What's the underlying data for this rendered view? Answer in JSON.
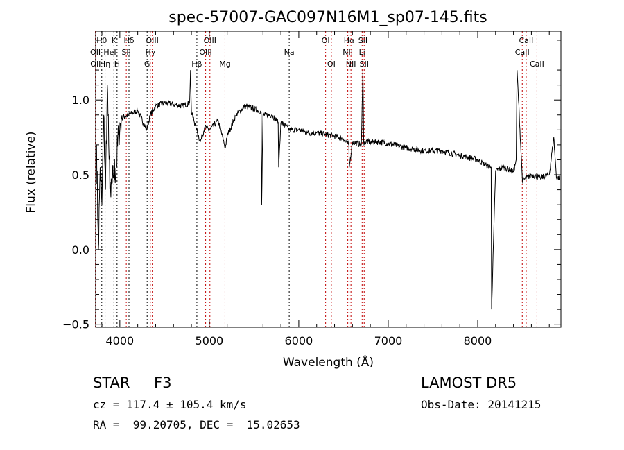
{
  "chart_data": {
    "type": "line",
    "title": "spec-57007-GAC097N16M1_sp07-145.fits",
    "xlabel": "Wavelength (Å)",
    "ylabel": "Flux (relative)",
    "xlim": [
      3730,
      8930
    ],
    "ylim": [
      -0.52,
      1.46
    ],
    "xticks": [
      4000,
      5000,
      6000,
      7000,
      8000
    ],
    "yticks": [
      -0.5,
      0.0,
      0.5,
      1.0
    ],
    "ytick_labels": [
      "−0.5",
      "0.0",
      "0.5",
      "1.0"
    ],
    "series": [
      {
        "name": "spectrum",
        "x": [
          3740,
          3760,
          3780,
          3800,
          3820,
          3840,
          3860,
          3880,
          3900,
          3930,
          3960,
          3990,
          4020,
          4100,
          4200,
          4300,
          4340,
          4400,
          4500,
          4600,
          4700,
          4780,
          4790,
          4800,
          4860,
          4900,
          4950,
          5000,
          5100,
          5180,
          5200,
          5300,
          5400,
          5500,
          5580,
          5585,
          5600,
          5700,
          5770,
          5775,
          5800,
          5900,
          6000,
          6100,
          6200,
          6300,
          6400,
          6500,
          6560,
          6565,
          6600,
          6700,
          6717,
          6725,
          6800,
          6900,
          7000,
          7200,
          7400,
          7600,
          7800,
          8000,
          8100,
          8150,
          8155,
          8200,
          8300,
          8400,
          8430,
          8440,
          8500,
          8600,
          8700,
          8800,
          8850,
          8880,
          8920
        ],
        "y": [
          0.7,
          0.0,
          0.55,
          0.3,
          0.9,
          0.4,
          1.1,
          0.6,
          0.35,
          0.5,
          0.55,
          0.8,
          0.88,
          0.9,
          0.93,
          0.8,
          0.9,
          0.96,
          0.98,
          0.97,
          0.96,
          0.98,
          1.2,
          0.92,
          0.8,
          0.72,
          0.82,
          0.8,
          0.86,
          0.68,
          0.76,
          0.9,
          0.96,
          0.94,
          0.92,
          0.3,
          0.9,
          0.9,
          0.85,
          0.55,
          0.85,
          0.8,
          0.8,
          0.78,
          0.78,
          0.77,
          0.76,
          0.74,
          0.7,
          0.55,
          0.72,
          0.7,
          1.2,
          0.72,
          0.72,
          0.72,
          0.71,
          0.68,
          0.66,
          0.66,
          0.63,
          0.6,
          0.56,
          0.55,
          -0.4,
          0.53,
          0.55,
          0.52,
          0.6,
          1.2,
          0.46,
          0.5,
          0.48,
          0.5,
          0.75,
          0.48,
          0.48
        ]
      }
    ],
    "lines": [
      {
        "label": "OII",
        "wave": 3727,
        "color": "#c00000",
        "row": 1
      },
      {
        "label": "OII",
        "wave": 3729,
        "color": "#c00000",
        "row": 2
      },
      {
        "label": "Hθ",
        "wave": 3798,
        "color": "#000000",
        "row": 0
      },
      {
        "label": "Hη",
        "wave": 3835,
        "color": "#000000",
        "row": 2
      },
      {
        "label": "HeI",
        "wave": 3889,
        "color": "#c00000",
        "row": 1
      },
      {
        "label": "K",
        "wave": 3934,
        "color": "#000000",
        "row": 0
      },
      {
        "label": "H",
        "wave": 3969,
        "color": "#000000",
        "row": 2
      },
      {
        "label": "SII",
        "wave": 4072,
        "color": "#c00000",
        "row": 1
      },
      {
        "label": "Hδ",
        "wave": 4102,
        "color": "#000000",
        "row": 0
      },
      {
        "label": "G",
        "wave": 4305,
        "color": "#000000",
        "row": 2
      },
      {
        "label": "Hγ",
        "wave": 4341,
        "color": "#c00000",
        "row": 1
      },
      {
        "label": "OIII",
        "wave": 4363,
        "color": "#c00000",
        "row": 0
      },
      {
        "label": "Hβ",
        "wave": 4861,
        "color": "#000000",
        "row": 2
      },
      {
        "label": "OIII",
        "wave": 4959,
        "color": "#c00000",
        "row": 1
      },
      {
        "label": "OIII",
        "wave": 5007,
        "color": "#c00000",
        "row": 0
      },
      {
        "label": "Mg",
        "wave": 5175,
        "color": "#c00000",
        "row": 2
      },
      {
        "label": "Na",
        "wave": 5893,
        "color": "#000000",
        "row": 1
      },
      {
        "label": "OI",
        "wave": 6300,
        "color": "#c00000",
        "row": 0
      },
      {
        "label": "OI",
        "wave": 6364,
        "color": "#c00000",
        "row": 2
      },
      {
        "label": "NII",
        "wave": 6548,
        "color": "#c00000",
        "row": 1
      },
      {
        "label": "Hα",
        "wave": 6563,
        "color": "#c00000",
        "row": 0
      },
      {
        "label": "NII",
        "wave": 6583,
        "color": "#c00000",
        "row": 2
      },
      {
        "label": "Li",
        "wave": 6708,
        "color": "#c00000",
        "row": 1
      },
      {
        "label": "SII",
        "wave": 6717,
        "color": "#c00000",
        "row": 0
      },
      {
        "label": "SII",
        "wave": 6731,
        "color": "#c00000",
        "row": 2
      },
      {
        "label": "CaII",
        "wave": 8498,
        "color": "#c00000",
        "row": 1
      },
      {
        "label": "CaII",
        "wave": 8542,
        "color": "#c00000",
        "row": 0
      },
      {
        "label": "CaII",
        "wave": 8662,
        "color": "#c00000",
        "row": 2
      }
    ]
  },
  "info": {
    "class": "STAR",
    "subclass": "F3",
    "survey": "LAMOST DR5",
    "cz": "cz = 117.4 ± 105.4 km/s",
    "obs_date": "Obs-Date: 20141215",
    "coords": "RA =  99.20705, DEC =  15.02653"
  }
}
